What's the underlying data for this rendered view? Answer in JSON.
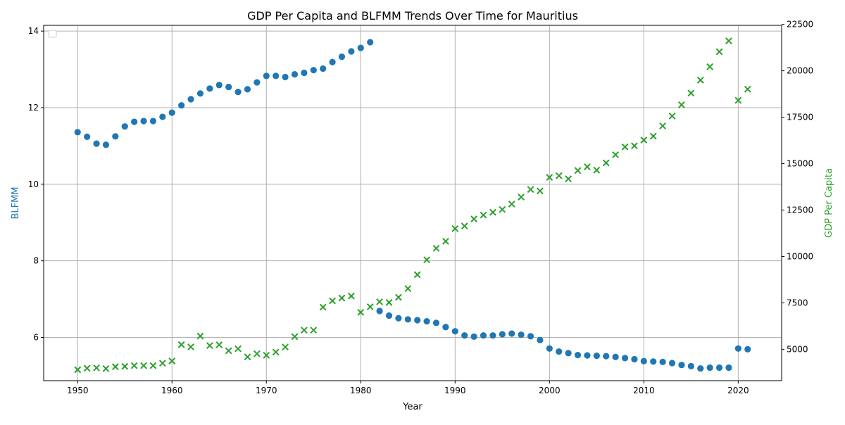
{
  "chart_data": {
    "type": "scatter",
    "title": "GDP Per Capita and BLFMM Trends Over Time for Mauritius",
    "xlabel": "Year",
    "ylabel_left": "BLFMM",
    "ylabel_right": "GDP Per Capita",
    "xlim": [
      1946.4,
      2024.6
    ],
    "ylim_left": [
      4.87,
      14.15
    ],
    "ylim_right": [
      3310,
      22450
    ],
    "x_ticks": [
      1950,
      1960,
      1970,
      1980,
      1990,
      2000,
      2010,
      2020
    ],
    "y_left_ticks": [
      6,
      8,
      10,
      12,
      14
    ],
    "y_right_ticks": [
      5000,
      7500,
      10000,
      12500,
      15000,
      17500,
      20000,
      22500
    ],
    "grid": true,
    "legend_placement": "upper-left",
    "colors": {
      "blfmm": "#1f77b4",
      "gdp": "#2ca02c",
      "grid": "#b0b0b0"
    },
    "series": [
      {
        "key": "blfmm",
        "axis": "left",
        "marker": "circle",
        "x": [
          1950,
          1951,
          1952,
          1953,
          1954,
          1955,
          1956,
          1957,
          1958,
          1959,
          1960,
          1961,
          1962,
          1963,
          1964,
          1965,
          1966,
          1967,
          1968,
          1969,
          1970,
          1971,
          1972,
          1973,
          1974,
          1975,
          1976,
          1977,
          1978,
          1979,
          1980,
          1981,
          1982,
          1983,
          1984,
          1985,
          1986,
          1987,
          1988,
          1989,
          1990,
          1991,
          1992,
          1993,
          1994,
          1995,
          1996,
          1997,
          1998,
          1999,
          2000,
          2001,
          2002,
          2003,
          2004,
          2005,
          2006,
          2007,
          2008,
          2009,
          2010,
          2011,
          2012,
          2013,
          2014,
          2015,
          2016,
          2017,
          2018,
          2019,
          2020,
          2021
        ],
        "values": [
          11.36,
          11.24,
          11.06,
          11.03,
          11.25,
          11.51,
          11.63,
          11.65,
          11.65,
          11.76,
          11.87,
          12.06,
          12.22,
          12.37,
          12.5,
          12.59,
          12.54,
          12.41,
          12.48,
          12.66,
          12.83,
          12.83,
          12.8,
          12.87,
          12.91,
          12.98,
          13.02,
          13.19,
          13.33,
          13.47,
          13.56,
          13.71,
          6.69,
          6.57,
          6.5,
          6.47,
          6.45,
          6.42,
          6.38,
          6.27,
          6.16,
          6.05,
          6.02,
          6.05,
          6.05,
          6.08,
          6.1,
          6.07,
          6.03,
          5.93,
          5.71,
          5.63,
          5.59,
          5.54,
          5.53,
          5.52,
          5.51,
          5.49,
          5.46,
          5.43,
          5.38,
          5.37,
          5.36,
          5.33,
          5.28,
          5.25,
          5.19,
          5.21,
          5.21,
          5.21,
          5.71,
          5.69
        ]
      },
      {
        "key": "gdp",
        "axis": "right",
        "marker": "x",
        "x": [
          1950,
          1951,
          1952,
          1953,
          1954,
          1955,
          1956,
          1957,
          1958,
          1959,
          1960,
          1961,
          1962,
          1963,
          1964,
          1965,
          1966,
          1967,
          1968,
          1969,
          1970,
          1971,
          1972,
          1973,
          1974,
          1975,
          1976,
          1977,
          1978,
          1979,
          1980,
          1981,
          1982,
          1983,
          1984,
          1985,
          1986,
          1987,
          1988,
          1989,
          1990,
          1991,
          1992,
          1993,
          1994,
          1995,
          1996,
          1997,
          1998,
          1999,
          2000,
          2001,
          2002,
          2003,
          2004,
          2005,
          2006,
          2007,
          2008,
          2009,
          2010,
          2011,
          2012,
          2013,
          2014,
          2015,
          2016,
          2017,
          2018,
          2019,
          2020,
          2021
        ],
        "values": [
          3900,
          3980,
          4000,
          3960,
          4060,
          4080,
          4120,
          4120,
          4120,
          4250,
          4370,
          5250,
          5130,
          5710,
          5200,
          5240,
          4920,
          5030,
          4590,
          4760,
          4680,
          4850,
          5120,
          5680,
          6030,
          6030,
          7270,
          7610,
          7760,
          7870,
          6990,
          7290,
          7560,
          7520,
          7800,
          8270,
          9020,
          9820,
          10440,
          10820,
          11500,
          11640,
          12020,
          12230,
          12380,
          12530,
          12820,
          13200,
          13610,
          13530,
          14260,
          14350,
          14180,
          14630,
          14830,
          14650,
          15040,
          15480,
          15900,
          15960,
          16270,
          16480,
          17030,
          17560,
          18170,
          18800,
          19500,
          20220,
          21030,
          21610,
          18410,
          19010
        ]
      }
    ]
  }
}
